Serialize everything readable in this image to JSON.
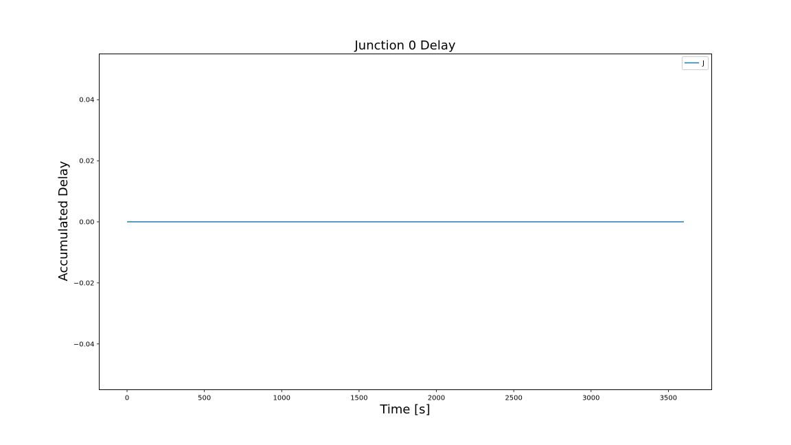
{
  "chart_data": {
    "type": "line",
    "title": "Junction 0 Delay",
    "xlabel": "Time [s]",
    "ylabel": "Accumulated Delay",
    "xlim": [
      -180,
      3780
    ],
    "ylim": [
      -0.055,
      0.055
    ],
    "xticks": [
      0,
      500,
      1000,
      1500,
      2000,
      2500,
      3000,
      3500
    ],
    "xtick_labels": [
      "0",
      "500",
      "1000",
      "1500",
      "2000",
      "2500",
      "3000",
      "3500"
    ],
    "yticks": [
      -0.04,
      -0.02,
      0.0,
      0.02,
      0.04
    ],
    "ytick_labels": [
      "−0.04",
      "−0.02",
      "0.00",
      "0.02",
      "0.04"
    ],
    "grid": false,
    "legend_position": "top-right",
    "series": [
      {
        "name": "J",
        "color": "#1f77b4",
        "x": [
          0,
          3600
        ],
        "y": [
          0,
          0
        ]
      }
    ]
  }
}
